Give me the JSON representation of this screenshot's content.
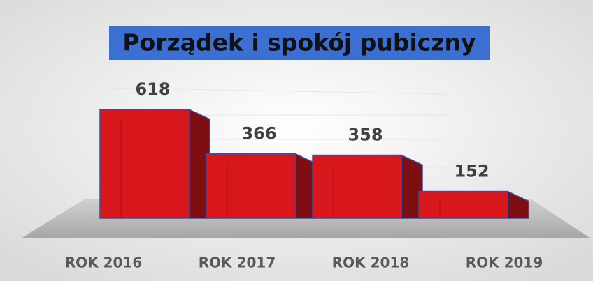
{
  "chart_data": {
    "type": "bar3d",
    "title": "Porządek i spokój pubiczny",
    "categories": [
      "ROK 2016",
      "ROK 2017",
      "ROK 2018",
      "ROK 2019"
    ],
    "values": [
      618,
      366,
      358,
      152
    ],
    "color": "#d8171c"
  }
}
